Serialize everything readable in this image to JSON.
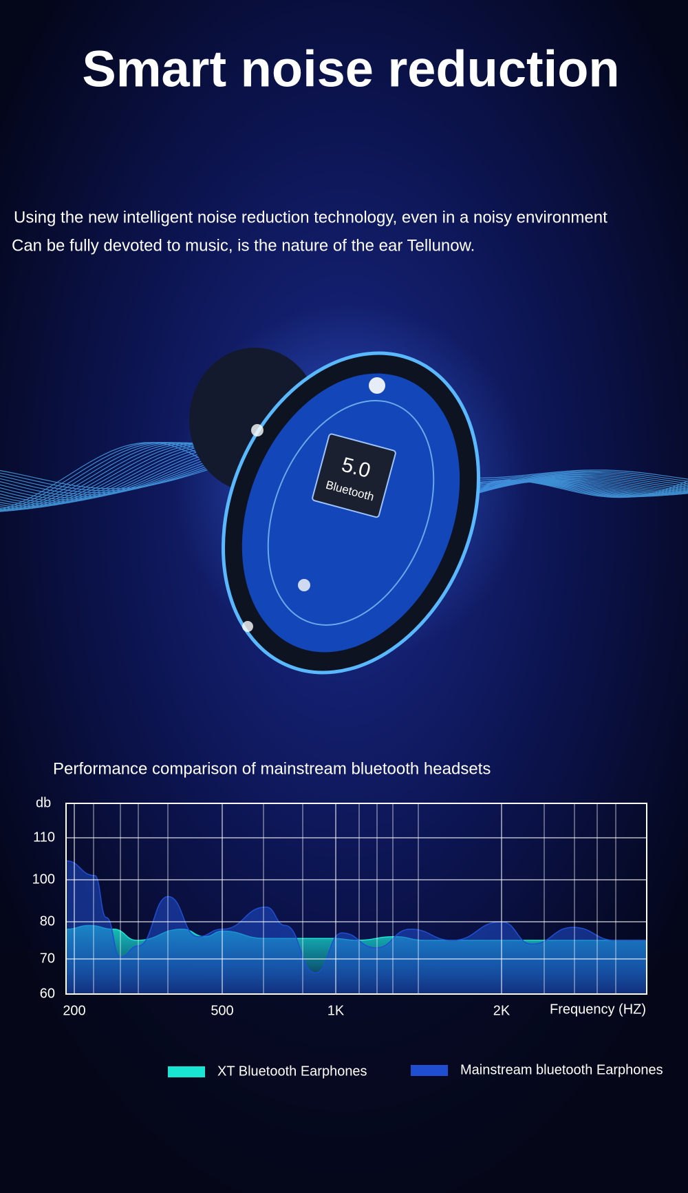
{
  "header": {
    "title": "Smart noise reduction"
  },
  "intro": {
    "lines": [
      "Using the new intelligent noise reduction technology, even in a noisy environment",
      "Can be fully devoted to music, is the nature of the ear  Tellunow."
    ]
  },
  "illustration": {
    "chip_version": "5.0",
    "chip_label": "Bluetooth"
  },
  "chart_data": {
    "type": "area",
    "title": "Performance comparison of mainstream bluetooth headsets",
    "y_label": "db",
    "x_label": "Frequency (HZ)",
    "xlim": [
      190,
      3700
    ],
    "xticks": [
      200,
      500,
      {
        "value": 1000,
        "label": "1K"
      },
      {
        "value": 2000,
        "label": "2K"
      }
    ],
    "ylim": [
      60,
      120
    ],
    "yticks": [
      60,
      70,
      80,
      100,
      110
    ],
    "grid": true,
    "series": [
      {
        "name": "XT Bluetooth Earphones",
        "color": "#19e6d2",
        "x": [
          190,
          220,
          255,
          295,
          390,
          450,
          500,
          650,
          990,
          1090,
          1280,
          1450,
          2000,
          3700
        ],
        "values": [
          78,
          79,
          78,
          75,
          78,
          76,
          77.5,
          75.5,
          75.5,
          75,
          76,
          75,
          75,
          75
        ]
      },
      {
        "name": "Mainstream bluetooth Earphones",
        "color": "#1f4fd0",
        "x": [
          190,
          227,
          244,
          266,
          297,
          358,
          430,
          500,
          654,
          734,
          883,
          1026,
          1183,
          1366,
          1627,
          2000,
          2274,
          2706,
          3242,
          3700
        ],
        "values": [
          104.5,
          101,
          82,
          70.5,
          73.5,
          92,
          76,
          78,
          87,
          79,
          66,
          77,
          73,
          78,
          75,
          80,
          74,
          78.5,
          75,
          75
        ]
      }
    ]
  }
}
